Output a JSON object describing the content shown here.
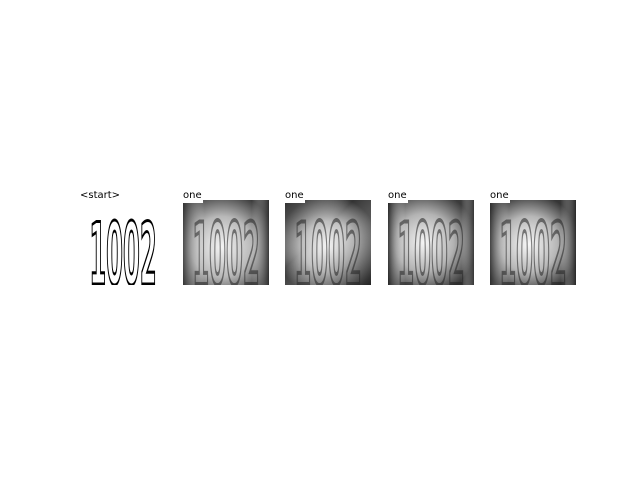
{
  "panels": [
    {
      "label": "<start>",
      "digits": "1002",
      "style": "clean"
    },
    {
      "label": "one",
      "digits": "1002",
      "style": "attention"
    },
    {
      "label": "one",
      "digits": "1002",
      "style": "attention"
    },
    {
      "label": "one",
      "digits": "1002",
      "style": "attention"
    },
    {
      "label": "one",
      "digits": "1002",
      "style": "attention"
    }
  ]
}
